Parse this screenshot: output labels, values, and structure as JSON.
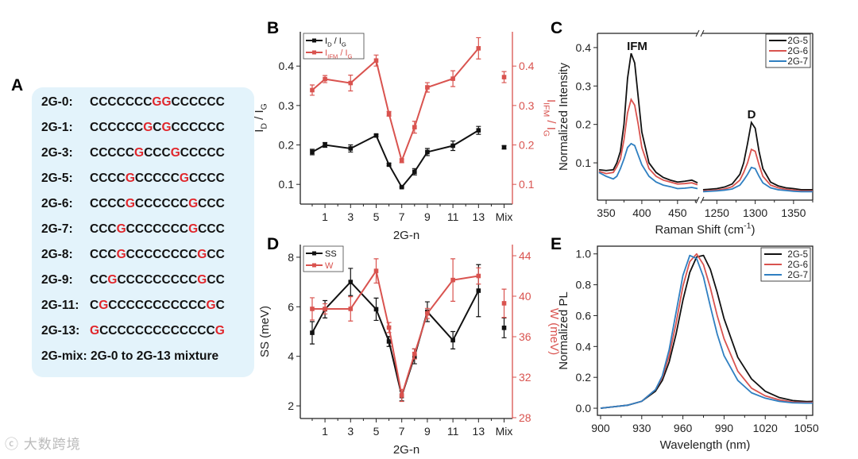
{
  "panel_labels": {
    "A": "A",
    "B": "B",
    "C": "C",
    "D": "D",
    "E": "E"
  },
  "panel_a": {
    "rows": [
      {
        "label": "2G-0:",
        "seq": "CCCCCCCGGCCCCCC"
      },
      {
        "label": "2G-1:",
        "seq": "CCCCCCGCGCCCCCC"
      },
      {
        "label": "2G-3:",
        "seq": "CCCCCGCCCGCCCCC"
      },
      {
        "label": "2G-5:",
        "seq": "CCCCGCCCCCGCCCC"
      },
      {
        "label": "2G-6:",
        "seq": "CCCCGCCCCCCGCCC"
      },
      {
        "label": "2G-7:",
        "seq": "CCCGCCCCCCCGCCC"
      },
      {
        "label": "2G-8:",
        "seq": "CCCGCCCCCCCCGCC"
      },
      {
        "label": "2G-9:",
        "seq": "CCGCCCCCCCCCGCC"
      },
      {
        "label": "2G-11:",
        "seq": "CGCCCCCCCCCCCGC"
      },
      {
        "label": "2G-13:",
        "seq": "GCCCCCCCCCCCCCG"
      }
    ],
    "mix_line": "2G-mix: 2G-0 to 2G-13 mixture",
    "highlight_color": "#e0262b"
  },
  "watermark": "大数跨境",
  "colors": {
    "black": "#111111",
    "red": "#d9534f",
    "blue": "#2f7fc1"
  },
  "chart_data": [
    {
      "id": "B",
      "type": "line",
      "x": [
        0,
        1,
        3,
        5,
        6,
        7,
        8,
        9,
        11,
        13,
        "Mix"
      ],
      "xticks": [
        1,
        3,
        5,
        7,
        9,
        11,
        13,
        "Mix"
      ],
      "xlabel": "2G-n",
      "ylabel": "I_{D} / I_{G}",
      "y2label": "I_{IFM} / I_{G}",
      "yticks": [
        0.1,
        0.2,
        0.3,
        0.4
      ],
      "y2ticks": [
        0.1,
        0.2,
        0.3,
        0.4
      ],
      "ylim": [
        0.05,
        0.487
      ],
      "y2lim": [
        0.05,
        0.487
      ],
      "legend": "top-left",
      "series": [
        {
          "name": "I_{D} / I_{G}",
          "axis": "left",
          "color": "#111111",
          "values": [
            0.182,
            0.2,
            0.191,
            0.224,
            0.15,
            0.093,
            0.132,
            0.182,
            0.198,
            0.237,
            0.194
          ],
          "errors": [
            0.007,
            0.006,
            0.009,
            0.003,
            0.003,
            0.002,
            0.008,
            0.009,
            0.012,
            0.01,
            0.004
          ]
        },
        {
          "name": "I_{IFM} / I_{G}",
          "axis": "right",
          "color": "#d9534f",
          "values": [
            0.339,
            0.367,
            0.357,
            0.414,
            0.279,
            0.16,
            0.245,
            0.346,
            0.368,
            0.445,
            0.372
          ],
          "errors": [
            0.013,
            0.009,
            0.02,
            0.014,
            0.006,
            0.005,
            0.015,
            0.012,
            0.02,
            0.027,
            0.014
          ]
        }
      ]
    },
    {
      "id": "D",
      "type": "line",
      "x": [
        0,
        1,
        3,
        5,
        6,
        7,
        8,
        9,
        11,
        13,
        "Mix"
      ],
      "xticks": [
        1,
        3,
        5,
        7,
        9,
        11,
        13,
        "Mix"
      ],
      "xlabel": "2G-n",
      "ylabel": "SS (meV)",
      "y2label": "W (meV)",
      "yticks": [
        2,
        4,
        6,
        8
      ],
      "y2ticks": [
        28,
        32,
        36,
        40,
        44
      ],
      "ylim": [
        1.49,
        8.51
      ],
      "y2lim": [
        27.92,
        45.1
      ],
      "legend": "top-left",
      "series": [
        {
          "name": "SS",
          "axis": "left",
          "color": "#111111",
          "values": [
            4.95,
            5.9,
            7.0,
            5.9,
            4.6,
            2.4,
            4.0,
            5.8,
            4.65,
            6.65,
            5.15
          ],
          "errors": [
            0.45,
            0.35,
            0.55,
            0.45,
            0.2,
            0.2,
            0.3,
            0.4,
            0.35,
            1.05,
            0.4
          ]
        },
        {
          "name": "W",
          "axis": "right",
          "color": "#d9534f",
          "values": [
            38.75,
            38.75,
            38.75,
            42.5,
            36.9,
            30.2,
            34.3,
            38.3,
            41.6,
            42.0,
            39.3
          ],
          "errors": [
            1.1,
            0.5,
            1.2,
            1.2,
            0.5,
            0.6,
            0.5,
            0.5,
            2.1,
            0.8,
            1.4
          ]
        }
      ]
    },
    {
      "id": "C",
      "type": "line",
      "xlabel": "Raman Shift (cm^{-1})",
      "ylabel": "Normalized Intensity",
      "yticks": [
        0.1,
        0.2,
        0.3,
        0.4
      ],
      "ylim": [
        0.003,
        0.437
      ],
      "segments": [
        {
          "xlim": [
            337.8,
            478
          ],
          "xticks": [
            350,
            400,
            450
          ],
          "x": [
            340,
            350,
            360,
            365,
            370,
            375,
            380,
            385,
            390,
            395,
            400,
            410,
            420,
            430,
            440,
            450,
            460,
            470,
            478
          ],
          "series": [
            {
              "name": "2G-5",
              "color": "#111111",
              "values": [
                0.082,
                0.08,
                0.082,
                0.1,
                0.13,
                0.2,
                0.32,
                0.385,
                0.36,
                0.27,
                0.18,
                0.1,
                0.075,
                0.062,
                0.055,
                0.05,
                0.052,
                0.055,
                0.048
              ]
            },
            {
              "name": "2G-6",
              "color": "#d9534f",
              "values": [
                0.078,
                0.072,
                0.075,
                0.09,
                0.11,
                0.16,
                0.23,
                0.265,
                0.25,
                0.2,
                0.14,
                0.085,
                0.065,
                0.055,
                0.05,
                0.045,
                0.046,
                0.048,
                0.043
              ]
            },
            {
              "name": "2G-7",
              "color": "#2f7fc1",
              "values": [
                0.075,
                0.065,
                0.058,
                0.065,
                0.085,
                0.11,
                0.14,
                0.15,
                0.145,
                0.12,
                0.095,
                0.065,
                0.05,
                0.042,
                0.038,
                0.033,
                0.034,
                0.036,
                0.033
              ]
            }
          ]
        },
        {
          "xlim": [
            1231,
            1375
          ],
          "xticks": [
            1250,
            1300,
            1350
          ],
          "x": [
            1232,
            1250,
            1260,
            1270,
            1280,
            1285,
            1290,
            1295,
            1300,
            1305,
            1310,
            1320,
            1330,
            1340,
            1350,
            1360,
            1375
          ],
          "series": [
            {
              "name": "2G-5",
              "color": "#111111",
              "values": [
                0.03,
                0.033,
                0.037,
                0.045,
                0.07,
                0.1,
                0.15,
                0.205,
                0.19,
                0.13,
                0.085,
                0.05,
                0.04,
                0.035,
                0.033,
                0.03,
                0.03
              ]
            },
            {
              "name": "2G-6",
              "color": "#d9534f",
              "values": [
                0.027,
                0.029,
                0.032,
                0.038,
                0.055,
                0.075,
                0.1,
                0.135,
                0.13,
                0.095,
                0.065,
                0.042,
                0.035,
                0.031,
                0.029,
                0.027,
                0.027
              ]
            },
            {
              "name": "2G-7",
              "color": "#2f7fc1",
              "values": [
                0.025,
                0.027,
                0.029,
                0.032,
                0.042,
                0.055,
                0.07,
                0.088,
                0.085,
                0.065,
                0.048,
                0.035,
                0.03,
                0.028,
                0.026,
                0.025,
                0.025
              ]
            }
          ]
        }
      ],
      "annotations": [
        "IFM",
        "D"
      ],
      "legend_entries": [
        "2G-5",
        "2G-6",
        "2G-7"
      ],
      "legend": "top-right"
    },
    {
      "id": "E",
      "type": "line",
      "xlabel": "Wavelength (nm)",
      "ylabel": "Normalized PL",
      "xticks": [
        900,
        930,
        960,
        990,
        1020,
        1050
      ],
      "yticks": [
        0.0,
        0.2,
        0.4,
        0.6,
        0.8,
        1.0
      ],
      "xlim": [
        897.7,
        1054.6
      ],
      "ylim": [
        -0.046,
        1.05
      ],
      "x": [
        900,
        910,
        920,
        930,
        940,
        945,
        950,
        955,
        960,
        965,
        970,
        975,
        980,
        985,
        990,
        1000,
        1010,
        1020,
        1030,
        1040,
        1050,
        1055
      ],
      "series": [
        {
          "name": "2G-5",
          "color": "#111111",
          "values": [
            0.0,
            0.01,
            0.02,
            0.045,
            0.11,
            0.18,
            0.3,
            0.48,
            0.7,
            0.88,
            0.98,
            0.99,
            0.9,
            0.75,
            0.58,
            0.33,
            0.19,
            0.11,
            0.07,
            0.05,
            0.043,
            0.045
          ]
        },
        {
          "name": "2G-6",
          "color": "#d9534f",
          "values": [
            0.0,
            0.01,
            0.02,
            0.045,
            0.12,
            0.2,
            0.34,
            0.55,
            0.79,
            0.95,
            1.0,
            0.93,
            0.78,
            0.6,
            0.45,
            0.24,
            0.13,
            0.08,
            0.055,
            0.04,
            0.037,
            0.038
          ]
        },
        {
          "name": "2G-7",
          "color": "#2f7fc1",
          "values": [
            0.0,
            0.01,
            0.02,
            0.045,
            0.12,
            0.21,
            0.38,
            0.62,
            0.86,
            0.99,
            0.97,
            0.85,
            0.66,
            0.48,
            0.34,
            0.18,
            0.1,
            0.065,
            0.045,
            0.035,
            0.033,
            0.033
          ]
        }
      ],
      "legend": "top-right"
    }
  ]
}
